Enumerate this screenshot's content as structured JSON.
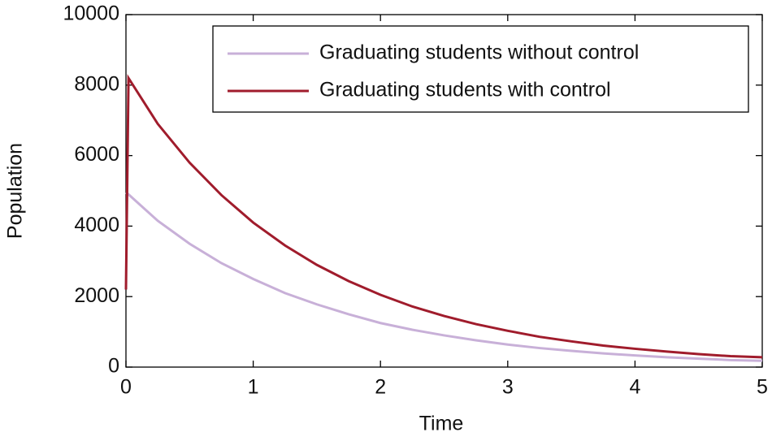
{
  "chart_data": {
    "type": "line",
    "x_label": "Time",
    "y_label": "Population",
    "x": [
      0,
      0.02,
      0.25,
      0.5,
      0.75,
      1,
      1.25,
      1.5,
      1.75,
      2,
      2.25,
      2.5,
      2.75,
      3,
      3.25,
      3.5,
      3.75,
      4,
      4.25,
      4.5,
      4.75,
      5
    ],
    "series": [
      {
        "name": "Graduating students without control",
        "color": "#c8b0d8",
        "values": [
          4950,
          4900,
          4150,
          3500,
          2950,
          2500,
          2100,
          1780,
          1500,
          1250,
          1060,
          900,
          760,
          640,
          540,
          460,
          390,
          330,
          280,
          240,
          200,
          180
        ]
      },
      {
        "name": "Graduating students with control",
        "color": "#a01c2c",
        "values": [
          2200,
          8200,
          6900,
          5800,
          4880,
          4100,
          3450,
          2900,
          2440,
          2050,
          1720,
          1450,
          1220,
          1030,
          860,
          730,
          610,
          520,
          440,
          370,
          310,
          280
        ]
      }
    ],
    "xlim": [
      0,
      5
    ],
    "xticks": [
      0,
      1,
      2,
      3,
      4,
      5
    ],
    "ylim": [
      0,
      10000
    ],
    "yticks": [
      0,
      2000,
      4000,
      6000,
      8000,
      10000
    ],
    "legend": "upper right"
  }
}
